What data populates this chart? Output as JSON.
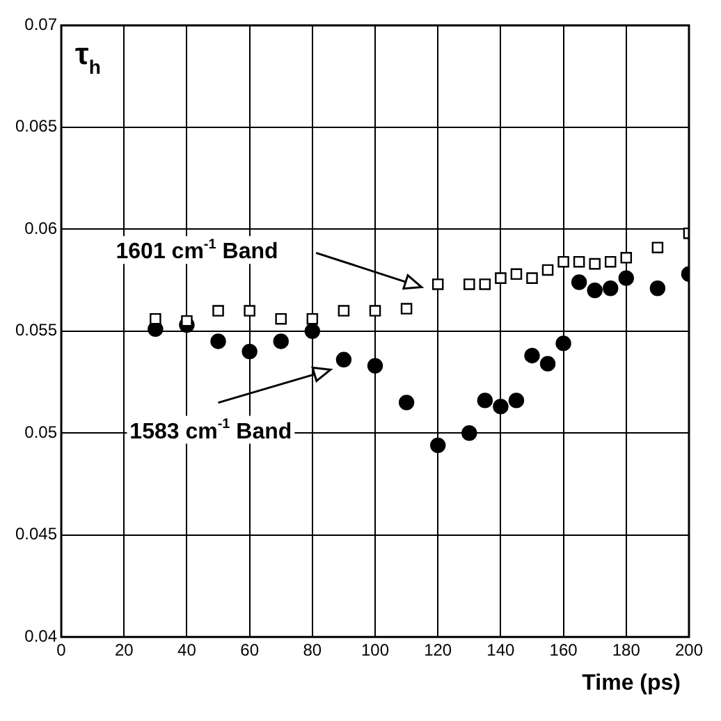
{
  "chart_data": {
    "type": "scatter",
    "ylabel": "τ$_{h}$",
    "xlabel": "Time (ps)",
    "xlim": [
      0,
      200
    ],
    "xticks": [
      0,
      20,
      40,
      60,
      80,
      100,
      120,
      140,
      160,
      180,
      200
    ],
    "ylim": [
      0.04,
      0.07
    ],
    "yticks": [
      0.04,
      0.045,
      0.05,
      0.055,
      0.06,
      0.065,
      0.07
    ],
    "grid": true,
    "series": [
      {
        "color": "#000000",
        "marker": "square",
        "x": [
          30,
          40,
          50,
          60,
          70,
          80,
          90,
          100,
          110,
          120,
          130,
          135,
          140,
          145,
          150,
          155,
          160,
          165,
          170,
          175,
          180,
          190,
          200
        ],
        "values": [
          0.0556,
          0.0555,
          0.056,
          0.056,
          0.0556,
          0.0556,
          0.056,
          0.056,
          0.0561,
          0.0573,
          0.0573,
          0.0573,
          0.0576,
          0.0578,
          0.0576,
          0.058,
          0.0584,
          0.0584,
          0.0583,
          0.0584,
          0.0586,
          0.0591,
          0.0598
        ]
      },
      {
        "color": "#000000",
        "marker": "circle",
        "x": [
          30,
          40,
          50,
          60,
          70,
          80,
          90,
          100,
          110,
          120,
          130,
          135,
          140,
          145,
          150,
          155,
          160,
          165,
          170,
          175,
          180,
          190,
          200
        ],
        "values": [
          0.0551,
          0.0553,
          0.0545,
          0.054,
          0.0545,
          0.055,
          0.0536,
          0.0533,
          0.0515,
          0.0494,
          0.05,
          0.0516,
          0.0513,
          0.0516,
          0.0538,
          0.0534,
          0.0544,
          0.0574,
          0.057,
          0.0571,
          0.0576,
          0.0571,
          0.0578
        ]
      }
    ],
    "annotations": [
      "1601 cm$^{-1}$ Band",
      "1583 cm$^{-1}$ Band"
    ]
  }
}
